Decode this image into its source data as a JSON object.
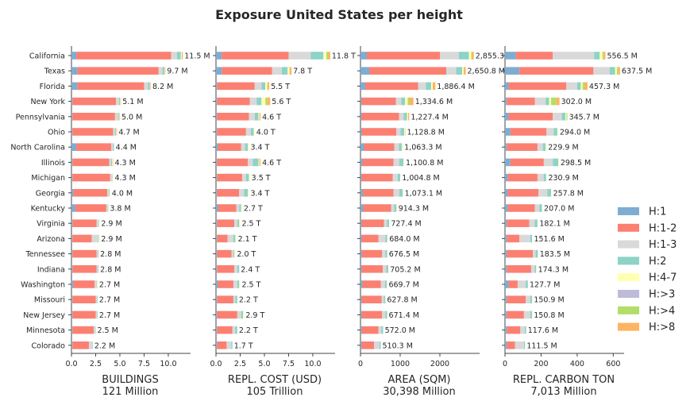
{
  "chart_data": {
    "type": "bar",
    "orientation": "horizontal",
    "stacked": true,
    "title": "Exposure United States per height",
    "legend": {
      "placement": "right",
      "entries": [
        {
          "label": "H:1",
          "color": "#7eadd1"
        },
        {
          "label": "H:1-2",
          "color": "#fb8072"
        },
        {
          "label": "H:1-3",
          "color": "#d9d9d9"
        },
        {
          "label": "H:2",
          "color": "#8dd3c7"
        },
        {
          "label": "H:4-7",
          "color": "#ffffb3"
        },
        {
          "label": "H:>3",
          "color": "#bebada"
        },
        {
          "label": "H:>4",
          "color": "#b3de69"
        },
        {
          "label": "H:>8",
          "color": "#fdb462"
        }
      ]
    },
    "states": [
      "California",
      "Texas",
      "Florida",
      "New York",
      "Pennsylvania",
      "Ohio",
      "North Carolina",
      "Illinois",
      "Michigan",
      "Georgia",
      "Kentucky",
      "Virginia",
      "Arizona",
      "Tennessee",
      "Indiana",
      "Washington",
      "Missouri",
      "New Jersey",
      "Minnesota",
      "Colorado"
    ],
    "panels": [
      {
        "xlabel": "BUILDINGS",
        "total_label": "121 Million",
        "xlim": [
          0,
          12.3
        ],
        "ticks": [
          0,
          2.5,
          5,
          7.5,
          10
        ],
        "tick_labels": [
          "0.0",
          "2.5",
          "5.0",
          "7.5",
          "10.0"
        ],
        "value_labels": [
          "11.5 M",
          "9.7 M",
          "8.2 M",
          "5.1 M",
          "5.0 M",
          "4.7 M",
          "4.4 M",
          "4.3 M",
          "4.3 M",
          "4.0 M",
          "3.8 M",
          "2.9 M",
          "2.9 M",
          "2.8 M",
          "2.8 M",
          "2.7 M",
          "2.7 M",
          "2.7 M",
          "2.5 M",
          "2.2 M"
        ],
        "segments": [
          [
            0.5,
            9.8,
            0.6,
            0.4,
            0.1,
            0,
            0,
            0.1
          ],
          [
            0.6,
            8.4,
            0.4,
            0.2,
            0.05,
            0,
            0,
            0.05
          ],
          [
            0.6,
            6.9,
            0.4,
            0.2,
            0.05,
            0,
            0,
            0.05
          ],
          [
            0.1,
            4.5,
            0.3,
            0.1,
            0.05,
            0,
            0,
            0.05
          ],
          [
            0.1,
            4.4,
            0.3,
            0.1,
            0.05,
            0,
            0,
            0.05
          ],
          [
            0.1,
            4.2,
            0.2,
            0.1,
            0.05,
            0,
            0,
            0.05
          ],
          [
            0.5,
            3.6,
            0.2,
            0.1,
            0,
            0,
            0,
            0
          ],
          [
            0.1,
            3.8,
            0.2,
            0.1,
            0.05,
            0,
            0,
            0.05
          ],
          [
            0.1,
            3.9,
            0.2,
            0.05,
            0.05,
            0,
            0,
            0
          ],
          [
            0.2,
            3.5,
            0.2,
            0.05,
            0.05,
            0,
            0,
            0
          ],
          [
            0.4,
            3.2,
            0.15,
            0.05,
            0,
            0,
            0,
            0
          ],
          [
            0.1,
            2.5,
            0.2,
            0.05,
            0.05,
            0,
            0,
            0
          ],
          [
            0.1,
            2.0,
            0.7,
            0.05,
            0.05,
            0,
            0,
            0
          ],
          [
            0.1,
            2.5,
            0.15,
            0.05,
            0,
            0,
            0,
            0
          ],
          [
            0.1,
            2.5,
            0.15,
            0.05,
            0,
            0,
            0,
            0
          ],
          [
            0.2,
            2.2,
            0.2,
            0.05,
            0.05,
            0,
            0,
            0
          ],
          [
            0.1,
            2.4,
            0.15,
            0.05,
            0,
            0,
            0,
            0
          ],
          [
            0.1,
            2.4,
            0.15,
            0.05,
            0,
            0,
            0,
            0
          ],
          [
            0.1,
            2.2,
            0.15,
            0.05,
            0,
            0,
            0,
            0
          ],
          [
            0.1,
            1.7,
            0.35,
            0.05,
            0,
            0,
            0,
            0
          ]
        ]
      },
      {
        "xlabel": "REPL. COST (USD)",
        "total_label": "105 Trillion",
        "xlim": [
          0,
          12.3
        ],
        "ticks": [
          0,
          2.5,
          5,
          7.5,
          10
        ],
        "tick_labels": [
          "0.0",
          "2.5",
          "5.0",
          "7.5",
          "10.0"
        ],
        "value_labels": [
          "11.8 T",
          "7.8 T",
          "5.5 T",
          "5.6 T",
          "4.6 T",
          "4.0 T",
          "3.4 T",
          "4.6 T",
          "3.5 T",
          "3.4 T",
          "2.7 T",
          "2.5 T",
          "2.1 T",
          "2.0 T",
          "2.4 T",
          "2.5 T",
          "2.2 T",
          "2.9 T",
          "2.2 T",
          "1.7 T"
        ],
        "segments": [
          [
            0.6,
            6.9,
            2.3,
            1.3,
            0.3,
            0,
            0.2,
            0.2
          ],
          [
            0.6,
            5.2,
            1.0,
            0.6,
            0.2,
            0,
            0,
            0.2
          ],
          [
            0.1,
            3.9,
            0.7,
            0.4,
            0.2,
            0,
            0,
            0.2
          ],
          [
            0.1,
            3.4,
            0.7,
            0.5,
            0.4,
            0,
            0.2,
            0.3
          ],
          [
            0.1,
            3.3,
            0.6,
            0.4,
            0.1,
            0,
            0,
            0.1
          ],
          [
            0.1,
            3.0,
            0.5,
            0.3,
            0.1,
            0,
            0,
            0
          ],
          [
            0.2,
            2.4,
            0.4,
            0.3,
            0.1,
            0,
            0,
            0
          ],
          [
            0.1,
            3.2,
            0.5,
            0.6,
            0.1,
            0,
            0,
            0.1
          ],
          [
            0.1,
            2.6,
            0.4,
            0.3,
            0.1,
            0,
            0,
            0
          ],
          [
            0.1,
            2.3,
            0.5,
            0.4,
            0.1,
            0,
            0,
            0
          ],
          [
            0.2,
            1.9,
            0.3,
            0.2,
            0.1,
            0,
            0,
            0
          ],
          [
            0.1,
            1.8,
            0.3,
            0.2,
            0.1,
            0,
            0,
            0
          ],
          [
            0.1,
            1.1,
            0.6,
            0.2,
            0.1,
            0,
            0,
            0
          ],
          [
            0.1,
            1.5,
            0.2,
            0.1,
            0.1,
            0,
            0,
            0
          ],
          [
            0.1,
            1.8,
            0.3,
            0.2,
            0,
            0,
            0,
            0
          ],
          [
            0.2,
            1.6,
            0.4,
            0.2,
            0.1,
            0,
            0,
            0
          ],
          [
            0.1,
            1.7,
            0.2,
            0.2,
            0,
            0,
            0,
            0
          ],
          [
            0.1,
            2.1,
            0.4,
            0.2,
            0.1,
            0,
            0,
            0
          ],
          [
            0.1,
            1.6,
            0.3,
            0.2,
            0,
            0,
            0,
            0
          ],
          [
            0.1,
            1.0,
            0.5,
            0.1,
            0,
            0,
            0,
            0
          ]
        ]
      },
      {
        "xlabel": "AREA (SQM)",
        "total_label": "30,398 Million",
        "xlim": [
          0,
          3000
        ],
        "ticks": [
          0,
          1000,
          2000
        ],
        "tick_labels": [
          "0",
          "1000",
          "2000"
        ],
        "value_labels": [
          "2,855.3 M",
          "2,650.8 M",
          "1,886.4 M",
          "1,334.6 M",
          "1,227.4 M",
          "1,128.8 M",
          "1,063.3 M",
          "1,100.8 M",
          "1,004.8 M",
          "1,073.1 M",
          "914.3 M",
          "727.4 M",
          "684.0 M",
          "676.5 M",
          "705.2 M",
          "669.7 M",
          "627.8 M",
          "671.4 M",
          "572.0 M",
          "510.3 M"
        ],
        "segments": [
          [
            160,
            1840,
            480,
            250,
            60,
            0,
            20,
            45
          ],
          [
            220,
            1940,
            250,
            150,
            40,
            0,
            0,
            50
          ],
          [
            120,
            1330,
            200,
            130,
            40,
            0,
            0,
            66
          ],
          [
            30,
            860,
            140,
            90,
            70,
            0,
            40,
            104
          ],
          [
            30,
            940,
            120,
            80,
            30,
            0,
            0,
            27
          ],
          [
            30,
            870,
            110,
            90,
            20,
            0,
            0,
            9
          ],
          [
            90,
            760,
            120,
            70,
            20,
            0,
            0,
            3
          ],
          [
            50,
            780,
            150,
            100,
            20,
            0,
            0,
            0
          ],
          [
            30,
            780,
            130,
            60,
            5,
            0,
            0,
            0
          ],
          [
            60,
            770,
            150,
            80,
            10,
            0,
            0,
            3
          ],
          [
            70,
            700,
            80,
            50,
            10,
            0,
            0,
            4
          ],
          [
            30,
            560,
            80,
            50,
            7,
            0,
            0,
            0
          ],
          [
            30,
            420,
            180,
            45,
            9,
            0,
            0,
            0
          ],
          [
            30,
            510,
            90,
            40,
            6,
            0,
            0,
            0
          ],
          [
            30,
            530,
            90,
            50,
            5,
            0,
            0,
            0
          ],
          [
            50,
            460,
            110,
            40,
            9,
            0,
            0,
            0
          ],
          [
            30,
            500,
            60,
            35,
            2,
            0,
            0,
            0
          ],
          [
            30,
            510,
            90,
            40,
            1,
            0,
            0,
            0
          ],
          [
            30,
            420,
            80,
            40,
            2,
            0,
            0,
            0
          ],
          [
            30,
            310,
            140,
            30,
            0,
            0,
            0,
            0
          ]
        ]
      },
      {
        "xlabel": "REPL. CARBON TON",
        "total_label": "7,013 Million",
        "xlim": [
          0,
          660
        ],
        "ticks": [
          0,
          200,
          400,
          600
        ],
        "tick_labels": [
          "0",
          "200",
          "400",
          "600"
        ],
        "value_labels": [
          "556.5 M",
          "637.5 M",
          "457.3 M",
          "302.0 M",
          "345.7 M",
          "294.0 M",
          "229.9 M",
          "298.5 M",
          "230.9 M",
          "257.8 M",
          "207.0 M",
          "182.1 M",
          "151.6 M",
          "183.5 M",
          "174.3 M",
          "127.7 M",
          "150.9 M",
          "150.8 M",
          "117.6 M",
          "111.5 M"
        ],
        "segments": [
          [
            60,
            205,
            230,
            30,
            15,
            0,
            6.5,
            10
          ],
          [
            80,
            410,
            90,
            30,
            10,
            0,
            7.5,
            10
          ],
          [
            20,
            320,
            60,
            20,
            10,
            0,
            10,
            17.3
          ],
          [
            10,
            155,
            60,
            20,
            10,
            0,
            30,
            17
          ],
          [
            20,
            245,
            50,
            20,
            6,
            0,
            4.7,
            0
          ],
          [
            30,
            200,
            40,
            20,
            4,
            0,
            0,
            0
          ],
          [
            10,
            170,
            30,
            15,
            4.9,
            0,
            0,
            0
          ],
          [
            30,
            185,
            50,
            30,
            3.5,
            0,
            0,
            0
          ],
          [
            15,
            165,
            35,
            13,
            2.9,
            0,
            0,
            0
          ],
          [
            15,
            170,
            50,
            20,
            2.8,
            0,
            0,
            0
          ],
          [
            15,
            150,
            25,
            15,
            2,
            0,
            0,
            0
          ],
          [
            10,
            125,
            30,
            15,
            2.1,
            0,
            0,
            0
          ],
          [
            10,
            70,
            60,
            10,
            1.6,
            0,
            0,
            0
          ],
          [
            10,
            145,
            15,
            12,
            1.5,
            0,
            0,
            0
          ],
          [
            10,
            135,
            20,
            8,
            1.3,
            0,
            0,
            0
          ],
          [
            20,
            50,
            45,
            12,
            0.7,
            0,
            0,
            0
          ],
          [
            10,
            105,
            25,
            10,
            0.9,
            0,
            0,
            0
          ],
          [
            10,
            95,
            35,
            10,
            0.8,
            0,
            0,
            0
          ],
          [
            10,
            75,
            25,
            7,
            0.6,
            0,
            0,
            0
          ],
          [
            10,
            45,
            50,
            6,
            0.5,
            0,
            0,
            0
          ]
        ]
      }
    ]
  }
}
